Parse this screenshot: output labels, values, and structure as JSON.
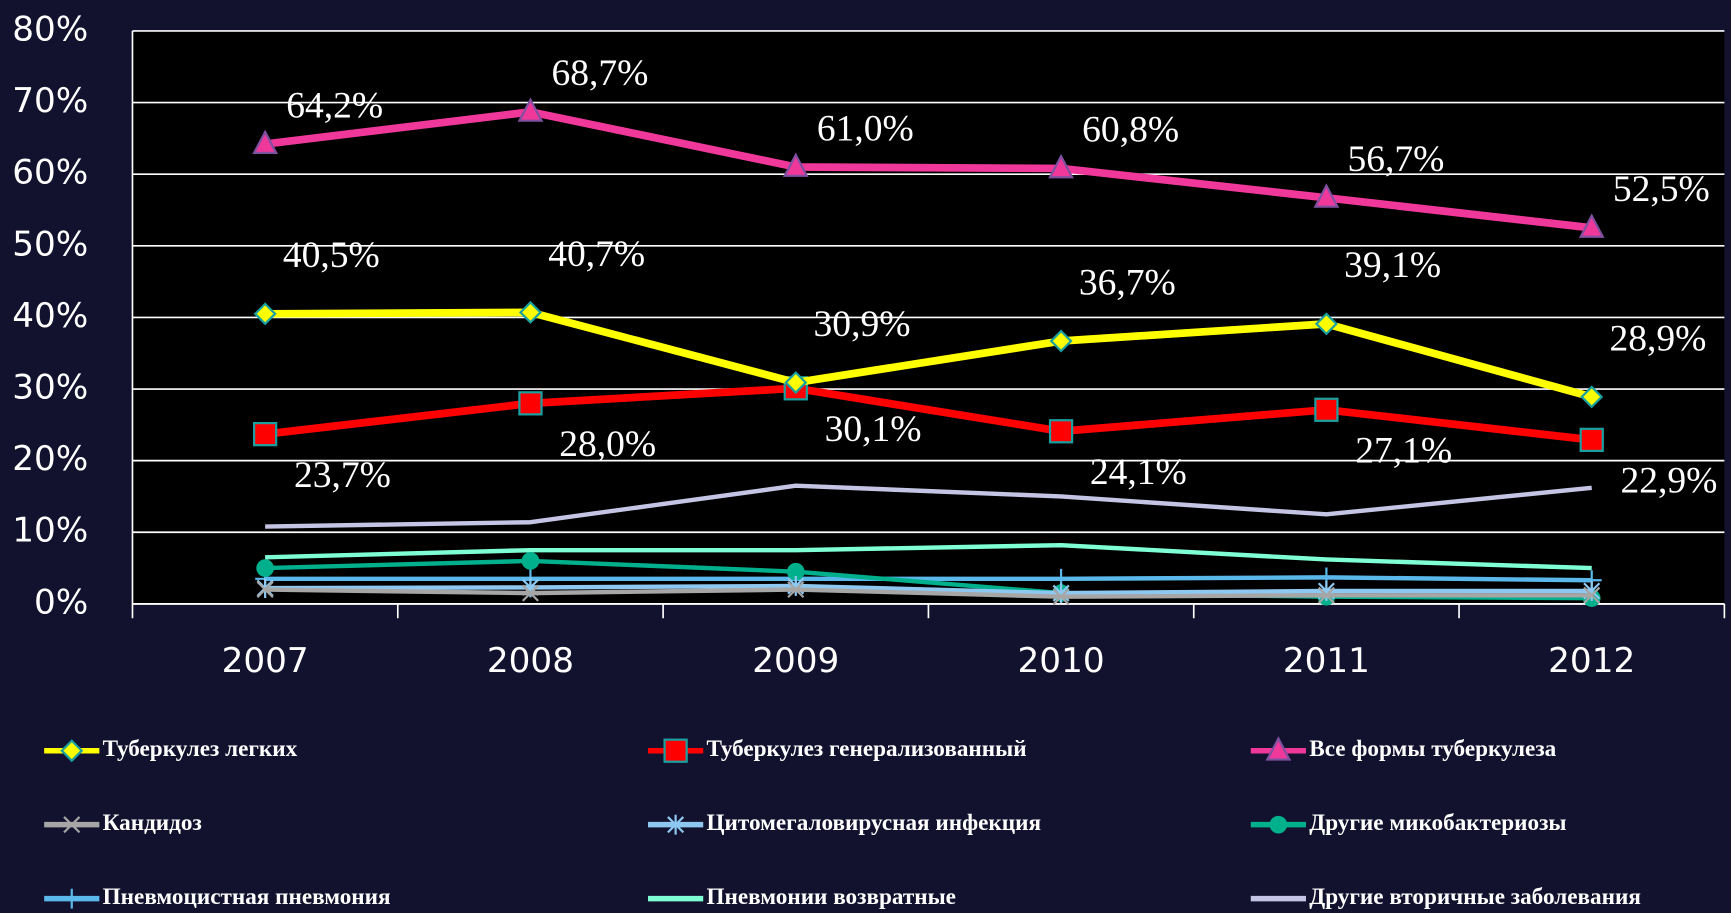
{
  "chart_data": {
    "type": "line",
    "categories": [
      "2007",
      "2008",
      "2009",
      "2010",
      "2011",
      "2012"
    ],
    "ylim": [
      0,
      80
    ],
    "yticks": [
      {
        "value": 0,
        "label": "0%"
      },
      {
        "value": 10,
        "label": "10%"
      },
      {
        "value": 20,
        "label": "20%"
      },
      {
        "value": 30,
        "label": "30%"
      },
      {
        "value": 40,
        "label": "40%"
      },
      {
        "value": 50,
        "label": "50%"
      },
      {
        "value": 60,
        "label": "60%"
      },
      {
        "value": 70,
        "label": "70%"
      },
      {
        "value": 80,
        "label": "80%"
      }
    ],
    "grid": true,
    "series": [
      {
        "name": "Туберкулез легких",
        "color": "#ffff00",
        "marker": "diamond",
        "values": [
          40.5,
          40.7,
          30.9,
          36.7,
          39.1,
          28.9
        ],
        "value_labels": [
          "40,5%",
          "40,7%",
          "30,9%",
          "36,7%",
          "39,1%",
          "28,9%"
        ]
      },
      {
        "name": "Туберкулез генерализованный",
        "color": "#ff0000",
        "marker": "square",
        "values": [
          23.7,
          28.0,
          30.1,
          24.1,
          27.1,
          22.9
        ],
        "value_labels": [
          "23,7%",
          "28,0%",
          "30,1%",
          "24,1%",
          "27,1%",
          "22,9%"
        ]
      },
      {
        "name": "Все формы туберкулеза",
        "color": "#f0389a",
        "marker": "triangle",
        "values": [
          64.2,
          68.7,
          61.0,
          60.8,
          56.7,
          52.5
        ],
        "value_labels": [
          "64,2%",
          "68,7%",
          "61,0%",
          "60,8%",
          "56,7%",
          "52,5%"
        ]
      },
      {
        "name": "Кандидоз",
        "color": "#a6a6a6",
        "marker": "x",
        "values": [
          2.0,
          1.5,
          2.0,
          1.0,
          1.2,
          1.2
        ]
      },
      {
        "name": "Цитомегаловирусная инфекция",
        "color": "#8ec8f0",
        "marker": "star",
        "values": [
          2.2,
          2.3,
          2.5,
          1.5,
          1.8,
          1.8
        ]
      },
      {
        "name": "Другие микобактериозы",
        "color": "#00b08c",
        "marker": "circle",
        "values": [
          5.0,
          6.0,
          4.5,
          1.5,
          1.0,
          0.8
        ]
      },
      {
        "name": "Пневмоцистная пневмония",
        "color": "#5ab8ea",
        "marker": "plus",
        "values": [
          3.5,
          3.5,
          3.5,
          3.5,
          3.7,
          3.3
        ]
      },
      {
        "name": "Пневмонии возвратные",
        "color": "#7fffd4",
        "marker": "none",
        "values": [
          6.5,
          7.5,
          7.5,
          8.2,
          6.2,
          5.0
        ]
      },
      {
        "name": "Другие вторичные заболевания",
        "color": "#c4c4e4",
        "marker": "none",
        "values": [
          10.8,
          11.4,
          16.5,
          15.0,
          12.5,
          16.2
        ]
      }
    ]
  }
}
